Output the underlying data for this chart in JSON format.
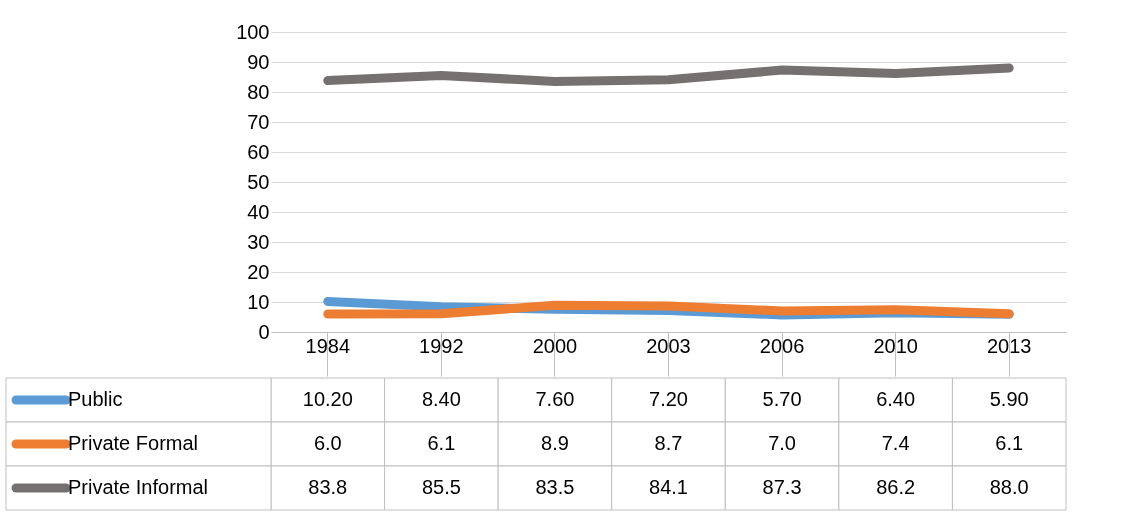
{
  "chart_data": {
    "type": "line",
    "categories": [
      "1984",
      "1992",
      "2000",
      "2003",
      "2006",
      "2010",
      "2013"
    ],
    "ylim": [
      0,
      100
    ],
    "yticks": [
      0,
      10,
      20,
      30,
      40,
      50,
      60,
      70,
      80,
      90,
      100
    ],
    "grid": "y",
    "legend": "left",
    "line_style": "solid",
    "marker": "none",
    "series": [
      {
        "name": "Public",
        "color": "#5b9bd5",
        "values": [
          10.2,
          8.4,
          7.6,
          7.2,
          5.7,
          6.4,
          5.9
        ],
        "value_labels": [
          "10.20",
          "8.40",
          "7.60",
          "7.20",
          "5.70",
          "6.40",
          "5.90"
        ]
      },
      {
        "name": "Private  Formal",
        "color": "#ed7d31",
        "values": [
          6.0,
          6.1,
          8.9,
          8.7,
          7.0,
          7.4,
          6.1
        ],
        "value_labels": [
          "6.0",
          "6.1",
          "8.9",
          "8.7",
          "7.0",
          "7.4",
          "6.1"
        ]
      },
      {
        "name": "Private Informal",
        "color": "#767171",
        "values": [
          83.8,
          85.5,
          83.5,
          84.1,
          87.3,
          86.2,
          88.0
        ],
        "value_labels": [
          "83.8",
          "85.5",
          "83.5",
          "84.1",
          "87.3",
          "86.2",
          "88.0"
        ]
      }
    ]
  }
}
